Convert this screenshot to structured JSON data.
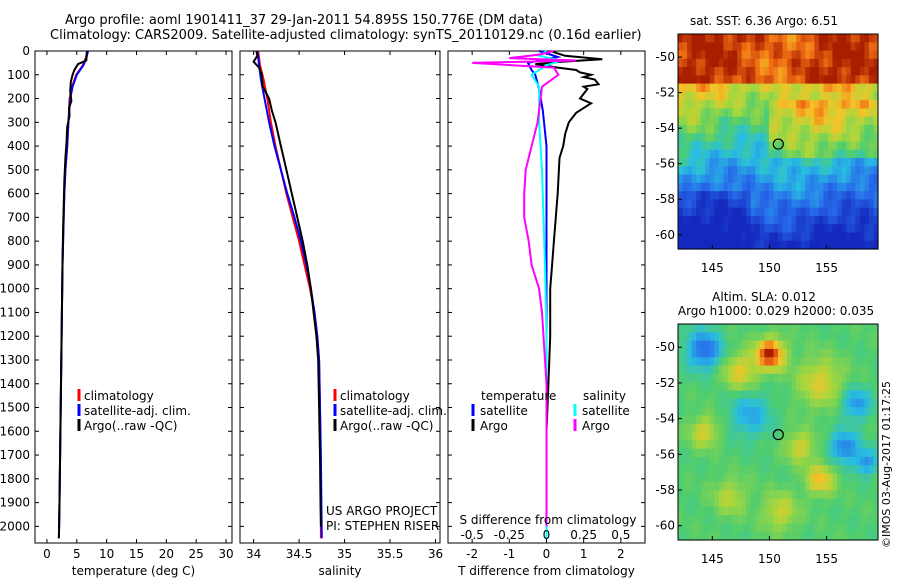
{
  "title": {
    "line1": "Argo profile: aoml 1901411_37 29-Jan-2011 54.895S 150.776E (DM data)",
    "line2": "Climatology: CARS2009. Satellite-adjusted climatology: synTS_20110129.nc (0.16d earlier)"
  },
  "colors": {
    "climatology": "#ff0000",
    "satellite": "#0000ff",
    "argo": "#000000",
    "sal_satellite": "#00ffff",
    "sal_argo": "#ff00ff"
  },
  "chart_data": [
    {
      "id": "temperature",
      "type": "line",
      "xlabel": "temperature (deg C)",
      "xlim": [
        -2,
        31
      ],
      "xticks": [
        0,
        5,
        10,
        15,
        20,
        25,
        30
      ],
      "ylim": [
        2070,
        0
      ],
      "yticks": [
        0,
        100,
        200,
        300,
        400,
        500,
        600,
        700,
        800,
        900,
        1000,
        1100,
        1200,
        1300,
        1400,
        1500,
        1600,
        1700,
        1800,
        1900,
        2000
      ],
      "legend": [
        "climatology",
        "satellite-adj. clim.",
        "Argo(..raw -QC)"
      ],
      "series": [
        {
          "name": "climatology",
          "color": "#ff0000",
          "points": [
            [
              6.8,
              0
            ],
            [
              6.5,
              30
            ],
            [
              6.0,
              60
            ],
            [
              4.9,
              100
            ],
            [
              4.2,
              150
            ],
            [
              3.8,
              200
            ],
            [
              3.6,
              300
            ],
            [
              3.4,
              400
            ],
            [
              3.1,
              500
            ],
            [
              2.9,
              600
            ],
            [
              2.8,
              700
            ],
            [
              2.6,
              900
            ],
            [
              2.5,
              1100
            ],
            [
              2.4,
              1300
            ],
            [
              2.3,
              1500
            ],
            [
              2.2,
              1700
            ],
            [
              2.1,
              1900
            ],
            [
              2.0,
              2050
            ]
          ]
        },
        {
          "name": "satellite-adj. clim.",
          "color": "#0000ff",
          "points": [
            [
              6.9,
              0
            ],
            [
              6.6,
              30
            ],
            [
              6.1,
              60
            ],
            [
              5.0,
              100
            ],
            [
              4.3,
              150
            ],
            [
              3.9,
              200
            ],
            [
              3.6,
              300
            ],
            [
              3.4,
              400
            ],
            [
              3.1,
              500
            ],
            [
              2.9,
              600
            ],
            [
              2.8,
              700
            ],
            [
              2.6,
              900
            ],
            [
              2.5,
              1100
            ],
            [
              2.4,
              1300
            ],
            [
              2.3,
              1500
            ],
            [
              2.2,
              1700
            ],
            [
              2.1,
              1900
            ],
            [
              2.0,
              2050
            ]
          ]
        },
        {
          "name": "Argo(..raw -QC)",
          "color": "#000000",
          "points": [
            [
              6.7,
              0
            ],
            [
              6.6,
              40
            ],
            [
              5.2,
              55
            ],
            [
              4.6,
              80
            ],
            [
              4.3,
              100
            ],
            [
              4.0,
              130
            ],
            [
              3.9,
              170
            ],
            [
              4.1,
              210
            ],
            [
              3.7,
              240
            ],
            [
              3.8,
              270
            ],
            [
              3.4,
              320
            ],
            [
              3.3,
              380
            ],
            [
              3.1,
              450
            ],
            [
              2.9,
              550
            ],
            [
              2.8,
              650
            ],
            [
              2.7,
              750
            ],
            [
              2.6,
              900
            ],
            [
              2.5,
              1100
            ],
            [
              2.4,
              1300
            ],
            [
              2.3,
              1500
            ],
            [
              2.2,
              1700
            ],
            [
              2.1,
              1900
            ],
            [
              2.0,
              2050
            ]
          ]
        }
      ]
    },
    {
      "id": "salinity",
      "type": "line",
      "xlabel": "salinity",
      "xlim": [
        33.85,
        36.05
      ],
      "xticks": [
        34,
        34.5,
        35,
        35.5,
        36
      ],
      "ylim": [
        2070,
        0
      ],
      "legend": [
        "climatology",
        "satellite-adj. clim.",
        "Argo(..raw -QC)"
      ],
      "series": [
        {
          "name": "climatology",
          "color": "#ff0000",
          "points": [
            [
              34.05,
              0
            ],
            [
              34.07,
              60
            ],
            [
              34.11,
              120
            ],
            [
              34.15,
              200
            ],
            [
              34.19,
              300
            ],
            [
              34.24,
              400
            ],
            [
              34.3,
              500
            ],
            [
              34.36,
              600
            ],
            [
              34.43,
              700
            ],
            [
              34.5,
              800
            ],
            [
              34.56,
              900
            ],
            [
              34.62,
              1000
            ],
            [
              34.67,
              1100
            ],
            [
              34.7,
              1200
            ],
            [
              34.72,
              1300
            ],
            [
              34.73,
              1500
            ],
            [
              34.735,
              1700
            ],
            [
              34.74,
              1900
            ],
            [
              34.74,
              2050
            ]
          ]
        },
        {
          "name": "satellite-adj. clim.",
          "color": "#0000ff",
          "points": [
            [
              34.04,
              0
            ],
            [
              34.06,
              60
            ],
            [
              34.08,
              120
            ],
            [
              34.12,
              200
            ],
            [
              34.17,
              300
            ],
            [
              34.23,
              400
            ],
            [
              34.3,
              500
            ],
            [
              34.37,
              600
            ],
            [
              34.45,
              700
            ],
            [
              34.52,
              800
            ],
            [
              34.58,
              900
            ],
            [
              34.63,
              1000
            ],
            [
              34.67,
              1100
            ],
            [
              34.7,
              1200
            ],
            [
              34.72,
              1300
            ],
            [
              34.73,
              1500
            ],
            [
              34.74,
              1700
            ],
            [
              34.745,
              1900
            ],
            [
              34.75,
              2050
            ]
          ]
        },
        {
          "name": "Argo(..raw -QC)",
          "color": "#000000",
          "points": [
            [
              34.03,
              0
            ],
            [
              34.04,
              20
            ],
            [
              34.0,
              45
            ],
            [
              34.06,
              70
            ],
            [
              34.09,
              100
            ],
            [
              34.1,
              150
            ],
            [
              34.17,
              200
            ],
            [
              34.2,
              250
            ],
            [
              34.24,
              300
            ],
            [
              34.3,
              400
            ],
            [
              34.36,
              500
            ],
            [
              34.42,
              600
            ],
            [
              34.48,
              700
            ],
            [
              34.54,
              800
            ],
            [
              34.59,
              900
            ],
            [
              34.63,
              1000
            ],
            [
              34.66,
              1100
            ],
            [
              34.69,
              1200
            ],
            [
              34.71,
              1300
            ],
            [
              34.72,
              1500
            ],
            [
              34.73,
              1700
            ],
            [
              34.735,
              1900
            ],
            [
              34.74,
              2000
            ]
          ]
        }
      ],
      "annotation": [
        "US ARGO PROJECT",
        "PI: STEPHEN RISER"
      ]
    },
    {
      "id": "difference",
      "type": "line",
      "xlabel": "T difference from climatology",
      "xlabel_top": "S difference from climatology",
      "xlim": [
        -2.65,
        2.65
      ],
      "xticks": [
        -2,
        -1,
        0,
        1,
        2
      ],
      "s_ticks": [
        -0.5,
        -0.25,
        0,
        0.25,
        0.5
      ],
      "ylim": [
        2070,
        0
      ],
      "legend_headers": [
        "temperature",
        "salinity"
      ],
      "legend_t": [
        "satellite",
        "Argo"
      ],
      "legend_s": [
        "satellite",
        "Argo"
      ],
      "series": [
        {
          "name": "T satellite",
          "color": "#0000ff",
          "points": [
            [
              -0.2,
              0
            ],
            [
              0.3,
              25
            ],
            [
              -0.5,
              50
            ],
            [
              -0.4,
              80
            ],
            [
              -0.3,
              100
            ],
            [
              -0.2,
              160
            ],
            [
              -0.1,
              250
            ],
            [
              0.0,
              400
            ],
            [
              0.0,
              700
            ],
            [
              0.0,
              1000
            ],
            [
              0.0,
              1400
            ],
            [
              0.0,
              1800
            ],
            [
              0.0,
              2050
            ]
          ]
        },
        {
          "name": "T Argo",
          "color": "#000000",
          "points": [
            [
              0.1,
              0
            ],
            [
              0.5,
              20
            ],
            [
              1.5,
              35
            ],
            [
              0.4,
              45
            ],
            [
              -0.3,
              55
            ],
            [
              0.3,
              70
            ],
            [
              0.8,
              80
            ],
            [
              0.9,
              90
            ],
            [
              1.2,
              100
            ],
            [
              1.0,
              110
            ],
            [
              1.3,
              120
            ],
            [
              1.4,
              140
            ],
            [
              1.0,
              150
            ],
            [
              1.1,
              160
            ],
            [
              0.9,
              200
            ],
            [
              1.2,
              220
            ],
            [
              0.8,
              260
            ],
            [
              0.6,
              300
            ],
            [
              0.5,
              350
            ],
            [
              0.45,
              400
            ],
            [
              0.35,
              450
            ],
            [
              0.3,
              600
            ],
            [
              0.25,
              700
            ],
            [
              0.2,
              800
            ],
            [
              0.15,
              900
            ],
            [
              0.1,
              1000
            ],
            [
              0.1,
              1200
            ],
            [
              0.05,
              1400
            ],
            [
              0.0,
              1600
            ],
            [
              0.0,
              1800
            ],
            [
              0.0,
              2050
            ]
          ]
        },
        {
          "name": "S satellite",
          "color": "#00ffff",
          "points": [
            [
              0.0,
              0
            ],
            [
              -0.05,
              20
            ],
            [
              0.1,
              40
            ],
            [
              0.0,
              60
            ],
            [
              -0.1,
              100
            ],
            [
              -0.05,
              150
            ],
            [
              -0.05,
              300
            ],
            [
              -0.03,
              500
            ],
            [
              -0.02,
              700
            ],
            [
              -0.01,
              900
            ],
            [
              0.0,
              1200
            ],
            [
              0.0,
              1600
            ],
            [
              0.0,
              2050
            ]
          ]
        },
        {
          "name": "S Argo",
          "color": "#ff00ff",
          "points": [
            [
              0.05,
              0
            ],
            [
              -0.05,
              15
            ],
            [
              -0.25,
              30
            ],
            [
              0.2,
              40
            ],
            [
              -0.5,
              50
            ],
            [
              0.05,
              70
            ],
            [
              0.08,
              100
            ],
            [
              -0.03,
              150
            ],
            [
              -0.04,
              200
            ],
            [
              -0.06,
              300
            ],
            [
              -0.1,
              400
            ],
            [
              -0.14,
              500
            ],
            [
              -0.15,
              600
            ],
            [
              -0.15,
              700
            ],
            [
              -0.12,
              800
            ],
            [
              -0.1,
              900
            ],
            [
              -0.05,
              1000
            ],
            [
              -0.03,
              1100
            ],
            [
              -0.02,
              1200
            ],
            [
              0.0,
              1400
            ],
            [
              0.0,
              2000
            ]
          ]
        }
      ]
    },
    {
      "id": "sst_map",
      "type": "heatmap",
      "title": "sat. SST: 6.36 Argo: 6.51",
      "xlim": [
        142,
        159.5
      ],
      "ylim": [
        -60.8,
        -48.7
      ],
      "xticks": [
        145,
        150,
        155
      ],
      "yticks": [
        -50,
        -52,
        -54,
        -56,
        -58,
        -60
      ],
      "marker": [
        150.776,
        -54.895
      ]
    },
    {
      "id": "sla_map",
      "type": "heatmap",
      "title_line1": "Altim. SLA: 0.012",
      "title_line2": "Argo h1000: 0.029 h2000: 0.035",
      "xlim": [
        142,
        159.5
      ],
      "ylim": [
        -60.8,
        -48.7
      ],
      "xticks": [
        145,
        150,
        155
      ],
      "yticks": [
        -50,
        -52,
        -54,
        -56,
        -58,
        -60
      ],
      "marker": [
        150.776,
        -54.895
      ]
    }
  ],
  "watermark": "©IMOS 03-Aug-2017 01:17:25"
}
